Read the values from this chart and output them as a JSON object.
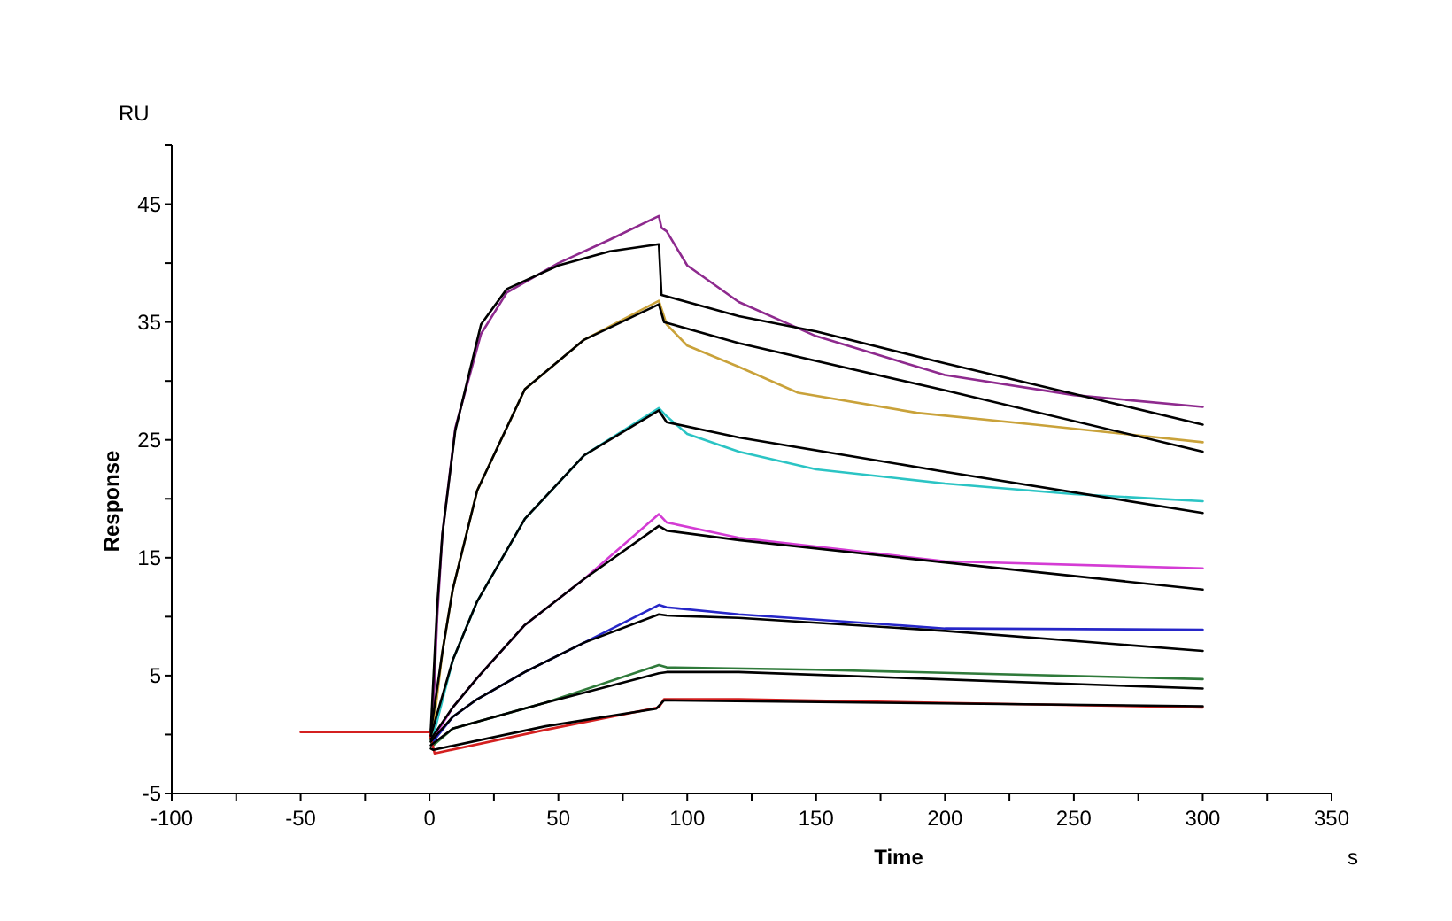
{
  "chart_data": {
    "type": "line",
    "xlabel": "Time",
    "ylabel": "Response",
    "annotations": [
      "RU",
      "s"
    ],
    "xlim": [
      -100,
      350
    ],
    "ylim": [
      -5,
      50
    ],
    "xticks": [
      -100,
      {
        "value": -75,
        "label": null
      },
      -50,
      {
        "value": -25,
        "label": null
      },
      0,
      {
        "value": 25,
        "label": null
      },
      50,
      {
        "value": 75,
        "label": null
      },
      100,
      {
        "value": 125,
        "label": null
      },
      150,
      {
        "value": 175,
        "label": null
      },
      200,
      {
        "value": 225,
        "label": null
      },
      250,
      {
        "value": 275,
        "label": null
      },
      300,
      {
        "value": 325,
        "label": null
      },
      350
    ],
    "yticks": [
      -5,
      {
        "value": 0,
        "label": null
      },
      5,
      {
        "value": 10,
        "label": null
      },
      15,
      {
        "value": 20,
        "label": null
      },
      25,
      {
        "value": 30,
        "label": null
      },
      35,
      {
        "value": 40,
        "label": null
      },
      45,
      {
        "value": 50,
        "label": null
      }
    ],
    "grid": false,
    "marker": "none",
    "line_style": "solid",
    "series": [
      {
        "color": "#8e2a8e",
        "x": [
          0,
          1,
          3,
          5,
          10,
          20,
          30,
          50,
          70,
          89,
          90,
          92,
          100,
          120,
          150,
          200,
          250,
          300
        ],
        "values": [
          0.2,
          -0.3,
          10,
          17,
          26,
          34,
          37.5,
          40,
          42,
          44,
          43,
          42.7,
          39.8,
          36.7,
          33.8,
          30.5,
          28.8,
          27.8
        ]
      },
      {
        "color": "#c9a23a",
        "x": [
          0,
          1,
          5,
          9,
          18.5,
          37,
          60,
          89,
          92,
          100,
          120,
          143,
          189,
          235,
          300
        ],
        "values": [
          0.2,
          -0.3,
          7,
          12.3,
          20.7,
          29.3,
          33.5,
          36.8,
          34.8,
          33,
          31.2,
          29,
          27.3,
          26.3,
          24.8
        ]
      },
      {
        "color": "#2bc4c4",
        "x": [
          0,
          1,
          9,
          18.5,
          37,
          60,
          89,
          92,
          100,
          120,
          150,
          200,
          250,
          300
        ],
        "values": [
          0.2,
          -0.5,
          6.3,
          11.3,
          18.3,
          23.7,
          27.7,
          27,
          25.5,
          24,
          22.5,
          21.3,
          20.4,
          19.8
        ]
      },
      {
        "color": "#d43cd4",
        "x": [
          0,
          1,
          9,
          18.5,
          37,
          60,
          89,
          92,
          120,
          200,
          300
        ],
        "values": [
          0.2,
          -0.5,
          2.3,
          4.8,
          9.3,
          13.2,
          18.7,
          18,
          16.7,
          14.7,
          14.1
        ]
      },
      {
        "color": "#2626c8",
        "x": [
          0,
          1,
          9,
          18.5,
          37,
          60,
          89,
          92,
          120,
          200,
          300
        ],
        "values": [
          0.2,
          -0.7,
          1.5,
          3,
          5.3,
          7.8,
          11,
          10.8,
          10.2,
          9,
          8.9
        ]
      },
      {
        "color": "#2f7a3a",
        "x": [
          0,
          1,
          9,
          45,
          89,
          92,
          150,
          300
        ],
        "values": [
          0.2,
          -1,
          0.5,
          2.7,
          5.9,
          5.7,
          5.5,
          4.7
        ]
      },
      {
        "color": "#d42020",
        "x": [
          -50,
          0,
          2,
          45,
          89,
          91,
          120,
          300
        ],
        "values": [
          0.2,
          0.2,
          -1.6,
          0.4,
          2.3,
          3,
          3,
          2.3
        ]
      },
      {
        "color": "#000000",
        "x": [
          0.5,
          3,
          5,
          10,
          20,
          30,
          50,
          70,
          89,
          90,
          120,
          150,
          200,
          250,
          300
        ],
        "values": [
          0.4,
          11,
          17,
          25.8,
          34.8,
          37.8,
          39.8,
          41,
          41.6,
          37.3,
          35.5,
          34.2,
          31.5,
          28.9,
          26.3
        ]
      },
      {
        "color": "#000000",
        "x": [
          0.5,
          5,
          9,
          18.5,
          37,
          60,
          89,
          91,
          120,
          200,
          300
        ],
        "values": [
          0.2,
          7,
          12.3,
          20.7,
          29.3,
          33.5,
          36.5,
          35,
          33.2,
          29.2,
          24
        ]
      },
      {
        "color": "#000000",
        "x": [
          0.5,
          9,
          18.5,
          37,
          60,
          89,
          92,
          120,
          200,
          300
        ],
        "values": [
          -0.1,
          6.3,
          11.3,
          18.3,
          23.7,
          27.5,
          26.5,
          25.2,
          22.3,
          18.8
        ]
      },
      {
        "color": "#000000",
        "x": [
          0.5,
          9,
          18.5,
          37,
          60,
          89,
          92,
          120,
          200,
          300
        ],
        "values": [
          -0.4,
          2.3,
          4.8,
          9.3,
          13.2,
          17.7,
          17.3,
          16.5,
          14.6,
          12.3
        ]
      },
      {
        "color": "#000000",
        "x": [
          0.5,
          9,
          18.5,
          37,
          60,
          89,
          92,
          120,
          200,
          300
        ],
        "values": [
          -0.6,
          1.5,
          3,
          5.3,
          7.8,
          10.2,
          10.1,
          9.9,
          8.8,
          7.1
        ]
      },
      {
        "color": "#000000",
        "x": [
          0.5,
          9,
          45,
          89,
          92,
          120,
          300
        ],
        "values": [
          -0.9,
          0.5,
          2.7,
          5.2,
          5.3,
          5.3,
          3.9
        ]
      },
      {
        "color": "#000000",
        "x": [
          0.5,
          1.5,
          45,
          88,
          91,
          300
        ],
        "values": [
          -1.2,
          -1.3,
          0.7,
          2.2,
          2.9,
          2.4
        ]
      }
    ]
  }
}
